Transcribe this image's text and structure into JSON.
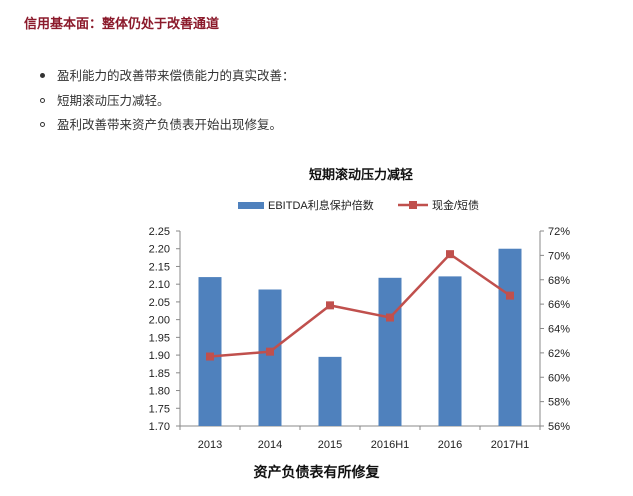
{
  "page": {
    "heading": "信用基本面：整体仍处于改善通道",
    "bullets": [
      {
        "marker": "solid",
        "text": "盈利能力的改善带来偿债能力的真实改善："
      },
      {
        "marker": "hollow",
        "text": "短期滚动压力减轻。"
      },
      {
        "marker": "hollow",
        "text": "盈利改善带来资产负债表开始出现修复。"
      }
    ],
    "bottom_title": "资产负债表有所修复"
  },
  "chart_data": {
    "type": "bar",
    "title": "短期滚动压力减轻",
    "legend_position": "top",
    "categories": [
      "2013",
      "2014",
      "2015",
      "2016H1",
      "2016",
      "2017H1"
    ],
    "series": [
      {
        "name": "EBITDA利息保护倍数",
        "type": "bar",
        "axis": "left",
        "color": "#4f81bd",
        "values": [
          2.12,
          2.085,
          1.895,
          2.118,
          2.122,
          2.2
        ]
      },
      {
        "name": "现金/短债",
        "type": "line",
        "axis": "right",
        "color": "#c0504d",
        "values": [
          61.7,
          62.1,
          65.9,
          64.9,
          70.1,
          66.7
        ]
      }
    ],
    "left_axis": {
      "ylim": [
        1.7,
        2.25
      ],
      "ticks": [
        "1.70",
        "1.75",
        "1.80",
        "1.85",
        "1.90",
        "1.95",
        "2.00",
        "2.05",
        "2.10",
        "2.15",
        "2.20",
        "2.25"
      ]
    },
    "right_axis": {
      "ylim": [
        56,
        72
      ],
      "ticks": [
        "56%",
        "58%",
        "60%",
        "62%",
        "64%",
        "66%",
        "68%",
        "70%",
        "72%"
      ]
    },
    "grid": false
  }
}
